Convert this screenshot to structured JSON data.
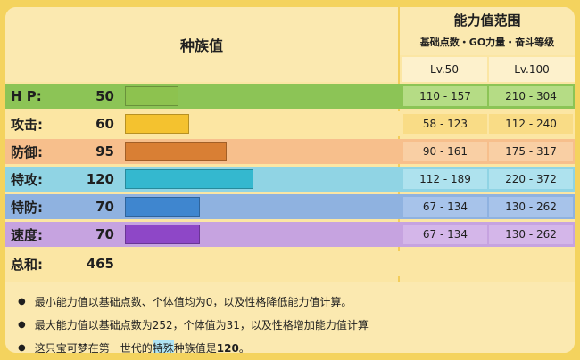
{
  "header": {
    "base_stats_label": "种族值",
    "stat_range_title": "能力值范围",
    "stat_range_subtitle": "基础点数・GO力量・奋斗等级",
    "lv50": "Lv.50",
    "lv100": "Lv.100"
  },
  "rows": [
    {
      "name": "H P:",
      "value": "50",
      "percent": 20,
      "bar_color": "#8dc24f",
      "row_color": "#8cc456",
      "range_bg": "#b5dc85",
      "lv50": "110 - 157",
      "lv100": "210 - 304"
    },
    {
      "name": "攻击:",
      "value": "60",
      "percent": 24,
      "bar_color": "#f4c22f",
      "row_color": "#fce6a3",
      "range_bg": "#f9dc86",
      "lv50": "58 - 123",
      "lv100": "112 - 240"
    },
    {
      "name": "防御:",
      "value": "95",
      "percent": 38,
      "bar_color": "#d97f34",
      "row_color": "#f7bf8c",
      "range_bg": "#f9cfa4",
      "lv50": "90 - 161",
      "lv100": "175 - 317"
    },
    {
      "name": "特攻:",
      "value": "120",
      "percent": 48,
      "bar_color": "#34b8cf",
      "row_color": "#90d4e4",
      "range_bg": "#aee2ee",
      "lv50": "112 - 189",
      "lv100": "220 - 372"
    },
    {
      "name": "特防:",
      "value": "70",
      "percent": 28,
      "bar_color": "#3f86cf",
      "row_color": "#8fb2e0",
      "range_bg": "#a7c3ea",
      "lv50": "67 - 134",
      "lv100": "130 - 262"
    },
    {
      "name": "速度:",
      "value": "70",
      "percent": 28,
      "bar_color": "#8e47c7",
      "row_color": "#c6a3e0",
      "range_bg": "#d4b6e9",
      "lv50": "67 - 134",
      "lv100": "130 - 262"
    }
  ],
  "total": {
    "name": "总和:",
    "value": "465"
  },
  "notes": {
    "n1": "最小能力值以基础点数、个体值均为0，以及性格降低能力值计算。",
    "n2": "最大能力值以基础点数为252，个体值为31，以及性格增加能力值计算",
    "n3_pre": "这只宝可梦在第一世代的",
    "n3_hl": "特殊",
    "n3_post": "种族值是",
    "n3_val": "120",
    "n3_end": "。"
  }
}
